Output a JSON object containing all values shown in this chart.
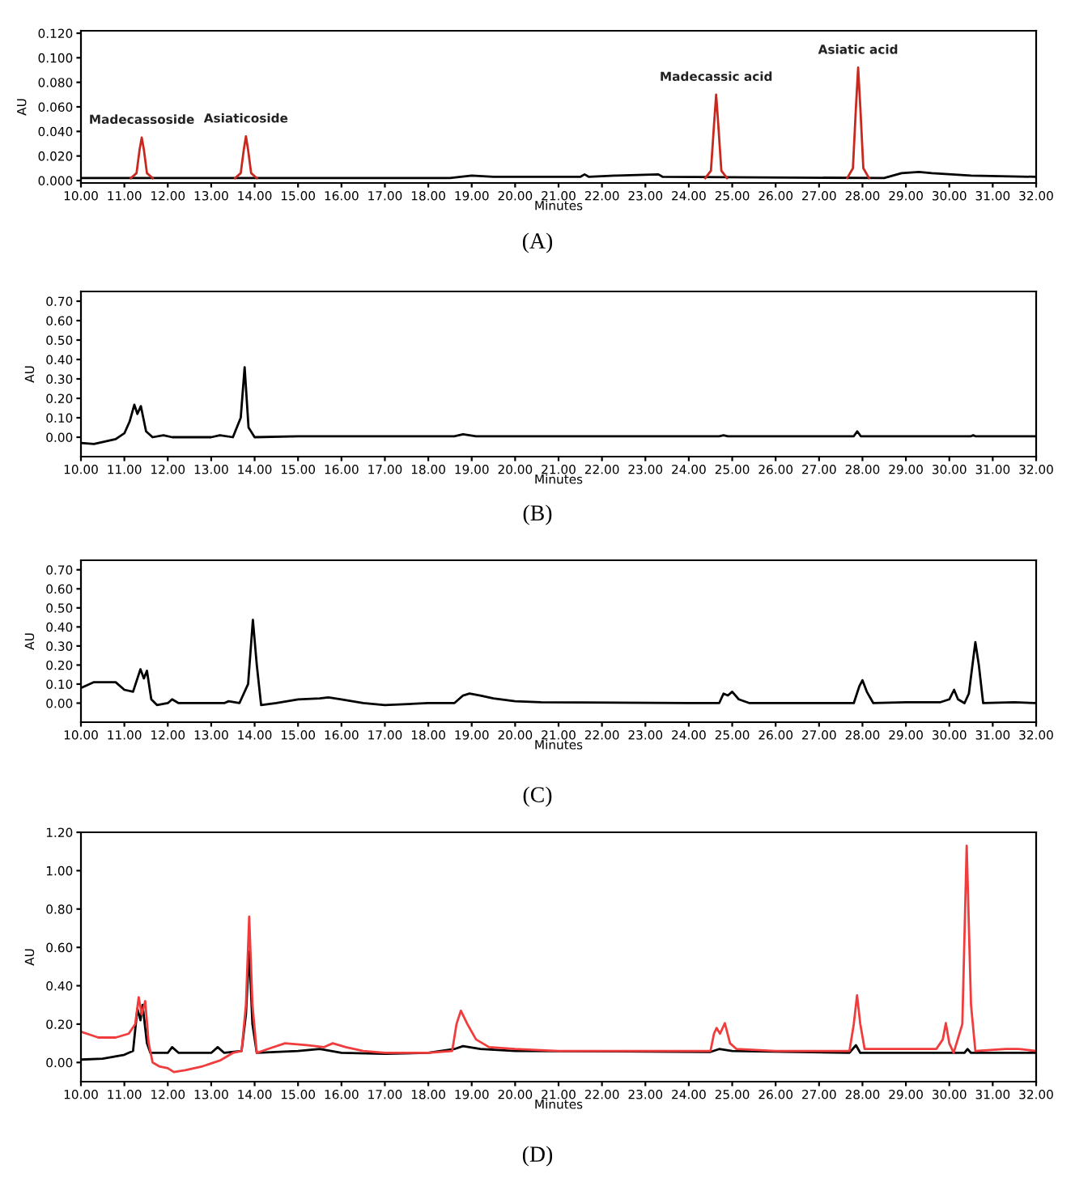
{
  "chart_data": [
    {
      "type": "line",
      "title": "(A)",
      "xlabel": "Minutes",
      "ylabel": "AU",
      "xlim": [
        10,
        32
      ],
      "ylim": [
        -0.002,
        0.122
      ],
      "xticks": [
        {
          "value": 10,
          "label": "10.00"
        },
        {
          "value": 11,
          "label": "11.00"
        },
        {
          "value": 12,
          "label": "12.00"
        },
        {
          "value": 13,
          "label": "13.00"
        },
        {
          "value": 14,
          "label": "14.00"
        },
        {
          "value": 15,
          "label": "15.00"
        },
        {
          "value": 16,
          "label": "16.00"
        },
        {
          "value": 17,
          "label": "17.00"
        },
        {
          "value": 18,
          "label": "18.00"
        },
        {
          "value": 19,
          "label": "19.00"
        },
        {
          "value": 20,
          "label": "20.00"
        },
        {
          "value": 21,
          "label": "21.00"
        },
        {
          "value": 22,
          "label": "22.00"
        },
        {
          "value": 23,
          "label": "23.00"
        },
        {
          "value": 24,
          "label": "24.00"
        },
        {
          "value": 25,
          "label": "25.00"
        },
        {
          "value": 26,
          "label": "26.00"
        },
        {
          "value": 27,
          "label": "27.00"
        },
        {
          "value": 28,
          "label": "28.00"
        },
        {
          "value": 29,
          "label": "29.00"
        },
        {
          "value": 30,
          "label": "30.00"
        },
        {
          "value": 31,
          "label": "31.00"
        },
        {
          "value": 32,
          "label": "32.00"
        }
      ],
      "yticks": [
        {
          "value": 0,
          "label": "0.000"
        },
        {
          "value": 0.02,
          "label": "0.020"
        },
        {
          "value": 0.04,
          "label": "0.040"
        },
        {
          "value": 0.06,
          "label": "0.060"
        },
        {
          "value": 0.08,
          "label": "0.080"
        },
        {
          "value": 0.1,
          "label": "0.100"
        },
        {
          "value": 0.12,
          "label": "0.120"
        }
      ],
      "series": [
        {
          "color": "#000000",
          "x": [
            10.0,
            18.5,
            19.0,
            19.5,
            21.5,
            21.6,
            21.7,
            22.3,
            23.3,
            23.4,
            28.5,
            28.9,
            29.3,
            29.6,
            30.5,
            32.0
          ],
          "values": [
            0.002,
            0.002,
            0.004,
            0.003,
            0.003,
            0.005,
            0.003,
            0.004,
            0.005,
            0.003,
            0.002,
            0.006,
            0.007,
            0.006,
            0.004,
            0.003
          ]
        },
        {
          "color": "#c8281e",
          "x": [
            11.15,
            11.28,
            11.35,
            11.4,
            11.45,
            11.52,
            11.65,
            11.7,
            13.55,
            13.68,
            13.75,
            13.8,
            13.85,
            13.92,
            14.05,
            14.1,
            24.38,
            24.51,
            24.58,
            24.63,
            24.68,
            24.75,
            24.88,
            24.9,
            27.65,
            27.78,
            27.85,
            27.9,
            27.95,
            28.02,
            28.15
          ],
          "values": [
            0.002,
            0.006,
            0.025,
            0.035,
            0.025,
            0.006,
            0.002,
            null,
            0.002,
            0.006,
            0.025,
            0.036,
            0.025,
            0.006,
            0.002,
            null,
            0.002,
            0.008,
            0.045,
            0.07,
            0.045,
            0.008,
            0.002,
            null,
            0.002,
            0.01,
            0.06,
            0.092,
            0.06,
            0.01,
            0.002
          ]
        }
      ],
      "annotations": [
        {
          "text": "Madecassoside",
          "x": 11.4,
          "y": 0.035
        },
        {
          "text": "Asiaticoside",
          "x": 13.8,
          "y": 0.036
        },
        {
          "text": "Madecassic acid",
          "x": 24.63,
          "y": 0.07
        },
        {
          "text": "Asiatic acid",
          "x": 27.9,
          "y": 0.092
        }
      ]
    },
    {
      "type": "line",
      "title": "(B)",
      "xlabel": "Minutes",
      "ylabel": "AU",
      "xlim": [
        10,
        32
      ],
      "ylim": [
        -0.1,
        0.75
      ],
      "xticks": [
        {
          "value": 10,
          "label": "10.00"
        },
        {
          "value": 11,
          "label": "11.00"
        },
        {
          "value": 12,
          "label": "12.00"
        },
        {
          "value": 13,
          "label": "13.00"
        },
        {
          "value": 14,
          "label": "14.00"
        },
        {
          "value": 15,
          "label": "15.00"
        },
        {
          "value": 16,
          "label": "16.00"
        },
        {
          "value": 17,
          "label": "17.00"
        },
        {
          "value": 18,
          "label": "18.00"
        },
        {
          "value": 19,
          "label": "19.00"
        },
        {
          "value": 20,
          "label": "20.00"
        },
        {
          "value": 21,
          "label": "21.00"
        },
        {
          "value": 22,
          "label": "22.00"
        },
        {
          "value": 23,
          "label": "23.00"
        },
        {
          "value": 24,
          "label": "24.00"
        },
        {
          "value": 25,
          "label": "25.00"
        },
        {
          "value": 26,
          "label": "26.00"
        },
        {
          "value": 27,
          "label": "27.00"
        },
        {
          "value": 28,
          "label": "28.00"
        },
        {
          "value": 29,
          "label": "29.00"
        },
        {
          "value": 30,
          "label": "30.00"
        },
        {
          "value": 31,
          "label": "31.00"
        },
        {
          "value": 32,
          "label": "32.00"
        }
      ],
      "yticks": [
        {
          "value": 0,
          "label": "0.00"
        },
        {
          "value": 0.1,
          "label": "0.10"
        },
        {
          "value": 0.2,
          "label": "0.20"
        },
        {
          "value": 0.3,
          "label": "0.30"
        },
        {
          "value": 0.4,
          "label": "0.40"
        },
        {
          "value": 0.5,
          "label": "0.50"
        },
        {
          "value": 0.6,
          "label": "0.60"
        },
        {
          "value": 0.7,
          "label": "0.70"
        }
      ],
      "series": [
        {
          "color": "#000000",
          "x": [
            10.0,
            10.3,
            10.8,
            11.0,
            11.12,
            11.23,
            11.3,
            11.38,
            11.5,
            11.65,
            11.9,
            12.1,
            13.0,
            13.2,
            13.5,
            13.68,
            13.77,
            13.86,
            14.0,
            15.0,
            18.6,
            18.8,
            19.1,
            24.7,
            24.8,
            24.9,
            27.8,
            27.88,
            27.96,
            28.1,
            30.5,
            30.55,
            30.6,
            32.0
          ],
          "values": [
            -0.03,
            -0.035,
            -0.01,
            0.02,
            0.08,
            0.167,
            0.12,
            0.16,
            0.03,
            0.0,
            0.01,
            0.0,
            0.0,
            0.01,
            0.0,
            0.1,
            0.36,
            0.05,
            0.0,
            0.005,
            0.005,
            0.015,
            0.005,
            0.005,
            0.01,
            0.005,
            0.005,
            0.03,
            0.005,
            0.005,
            0.005,
            0.01,
            0.005,
            0.005
          ]
        }
      ]
    },
    {
      "type": "line",
      "title": "(C)",
      "xlabel": "Minutes",
      "ylabel": "AU",
      "xlim": [
        10,
        32
      ],
      "ylim": [
        -0.1,
        0.75
      ],
      "xticks": [
        {
          "value": 10,
          "label": "10.00"
        },
        {
          "value": 11,
          "label": "11.00"
        },
        {
          "value": 12,
          "label": "12.00"
        },
        {
          "value": 13,
          "label": "13.00"
        },
        {
          "value": 14,
          "label": "14.00"
        },
        {
          "value": 15,
          "label": "15.00"
        },
        {
          "value": 16,
          "label": "16.00"
        },
        {
          "value": 17,
          "label": "17.00"
        },
        {
          "value": 18,
          "label": "18.00"
        },
        {
          "value": 19,
          "label": "19.00"
        },
        {
          "value": 20,
          "label": "20.00"
        },
        {
          "value": 21,
          "label": "21.00"
        },
        {
          "value": 22,
          "label": "22.00"
        },
        {
          "value": 23,
          "label": "23.00"
        },
        {
          "value": 24,
          "label": "24.00"
        },
        {
          "value": 25,
          "label": "25.00"
        },
        {
          "value": 26,
          "label": "26.00"
        },
        {
          "value": 27,
          "label": "27.00"
        },
        {
          "value": 28,
          "label": "28.00"
        },
        {
          "value": 29,
          "label": "29.00"
        },
        {
          "value": 30,
          "label": "30.00"
        },
        {
          "value": 31,
          "label": "31.00"
        },
        {
          "value": 32,
          "label": "32.00"
        }
      ],
      "yticks": [
        {
          "value": 0,
          "label": "0.00"
        },
        {
          "value": 0.1,
          "label": "0.10"
        },
        {
          "value": 0.2,
          "label": "0.20"
        },
        {
          "value": 0.3,
          "label": "0.30"
        },
        {
          "value": 0.4,
          "label": "0.40"
        },
        {
          "value": 0.5,
          "label": "0.50"
        },
        {
          "value": 0.6,
          "label": "0.60"
        },
        {
          "value": 0.7,
          "label": "0.70"
        }
      ],
      "series": [
        {
          "color": "#000000",
          "x": [
            10.0,
            10.3,
            10.8,
            11.0,
            11.2,
            11.37,
            11.45,
            11.52,
            11.62,
            11.75,
            12.0,
            12.1,
            12.25,
            13.0,
            13.3,
            13.4,
            13.65,
            13.85,
            13.96,
            14.05,
            14.15,
            14.5,
            15.0,
            15.5,
            15.7,
            16.0,
            16.5,
            17.0,
            18.0,
            18.6,
            18.8,
            18.95,
            19.2,
            19.5,
            20.0,
            20.6,
            24.0,
            24.7,
            24.8,
            24.9,
            25.0,
            25.15,
            25.4,
            26.0,
            27.8,
            27.93,
            28.0,
            28.1,
            28.25,
            29.0,
            29.8,
            30.0,
            30.11,
            30.2,
            30.35,
            30.45,
            30.6,
            30.68,
            30.78,
            31.5,
            32.0
          ],
          "values": [
            0.08,
            0.11,
            0.11,
            0.07,
            0.06,
            0.178,
            0.13,
            0.17,
            0.02,
            -0.01,
            0.0,
            0.02,
            0.0,
            0.0,
            0.0,
            0.01,
            0.0,
            0.1,
            0.437,
            0.2,
            -0.01,
            0.0,
            0.02,
            0.025,
            0.03,
            0.02,
            0.0,
            -0.01,
            0.0,
            0.0,
            0.04,
            0.05,
            0.04,
            0.025,
            0.01,
            0.005,
            0.0,
            0.0,
            0.05,
            0.04,
            0.06,
            0.02,
            0.0,
            0.0,
            0.0,
            0.09,
            0.12,
            0.06,
            0.0,
            0.005,
            0.005,
            0.02,
            0.07,
            0.02,
            0.0,
            0.05,
            0.32,
            0.2,
            0.0,
            0.005,
            0.0
          ]
        }
      ]
    },
    {
      "type": "line",
      "title": "(D)",
      "xlabel": "Minutes",
      "ylabel": "AU",
      "xlim": [
        10,
        32
      ],
      "ylim": [
        -0.1,
        1.2
      ],
      "xticks": [
        {
          "value": 10,
          "label": "10.00"
        },
        {
          "value": 11,
          "label": "11.00"
        },
        {
          "value": 12,
          "label": "12.00"
        },
        {
          "value": 13,
          "label": "13.00"
        },
        {
          "value": 14,
          "label": "14.00"
        },
        {
          "value": 15,
          "label": "15.00"
        },
        {
          "value": 16,
          "label": "16.00"
        },
        {
          "value": 17,
          "label": "17.00"
        },
        {
          "value": 18,
          "label": "18.00"
        },
        {
          "value": 19,
          "label": "19.00"
        },
        {
          "value": 20,
          "label": "20.00"
        },
        {
          "value": 21,
          "label": "21.00"
        },
        {
          "value": 22,
          "label": "22.00"
        },
        {
          "value": 23,
          "label": "23.00"
        },
        {
          "value": 24,
          "label": "24.00"
        },
        {
          "value": 25,
          "label": "25.00"
        },
        {
          "value": 26,
          "label": "26.00"
        },
        {
          "value": 27,
          "label": "27.00"
        },
        {
          "value": 28,
          "label": "28.00"
        },
        {
          "value": 29,
          "label": "29.00"
        },
        {
          "value": 30,
          "label": "30.00"
        },
        {
          "value": 31,
          "label": "31.00"
        },
        {
          "value": 32,
          "label": "32.00"
        }
      ],
      "yticks": [
        {
          "value": 0,
          "label": "0.00"
        },
        {
          "value": 0.2,
          "label": "0.20"
        },
        {
          "value": 0.4,
          "label": "0.40"
        },
        {
          "value": 0.6,
          "label": "0.60"
        },
        {
          "value": 0.8,
          "label": "0.80"
        },
        {
          "value": 1.0,
          "label": "1.00"
        },
        {
          "value": 1.2,
          "label": "1.20"
        }
      ],
      "series": [
        {
          "color": "#000000",
          "x": [
            10.0,
            10.5,
            11.0,
            11.2,
            11.3,
            11.37,
            11.42,
            11.52,
            11.6,
            12.0,
            12.1,
            12.25,
            13.0,
            13.15,
            13.3,
            13.7,
            13.8,
            13.875,
            13.95,
            14.05,
            15.0,
            15.5,
            16.0,
            17.0,
            18.0,
            18.6,
            18.8,
            19.2,
            20.0,
            24.5,
            24.7,
            25.0,
            27.7,
            27.85,
            27.95,
            30.35,
            30.42,
            30.5,
            32.0
          ],
          "values": [
            0.015,
            0.02,
            0.04,
            0.06,
            0.28,
            0.22,
            0.3,
            0.1,
            0.05,
            0.05,
            0.08,
            0.05,
            0.05,
            0.08,
            0.05,
            0.06,
            0.25,
            0.58,
            0.2,
            0.05,
            0.06,
            0.07,
            0.05,
            0.045,
            0.05,
            0.07,
            0.085,
            0.07,
            0.06,
            0.055,
            0.07,
            0.06,
            0.05,
            0.09,
            0.05,
            0.05,
            0.07,
            0.05,
            0.05
          ]
        },
        {
          "color": "#f03c3c",
          "x": [
            10.0,
            10.4,
            10.8,
            11.1,
            11.25,
            11.33,
            11.4,
            11.48,
            11.56,
            11.65,
            11.8,
            12.0,
            12.14,
            12.4,
            12.8,
            13.2,
            13.5,
            13.7,
            13.8,
            13.875,
            13.95,
            14.05,
            14.3,
            14.7,
            15.2,
            15.6,
            15.8,
            16.1,
            16.5,
            17.0,
            18.0,
            18.55,
            18.65,
            18.75,
            18.9,
            19.1,
            19.4,
            20.0,
            21.0,
            24.5,
            24.58,
            24.64,
            24.72,
            24.83,
            24.95,
            25.1,
            26.0,
            27.7,
            27.8,
            27.875,
            27.95,
            28.05,
            28.8,
            29.7,
            29.85,
            29.92,
            30.0,
            30.1,
            30.3,
            30.4,
            30.5,
            30.6,
            31.3,
            31.6,
            32.0
          ],
          "values": [
            0.16,
            0.13,
            0.13,
            0.15,
            0.2,
            0.34,
            0.25,
            0.32,
            0.1,
            0.0,
            -0.02,
            -0.03,
            -0.05,
            -0.04,
            -0.02,
            0.01,
            0.05,
            0.06,
            0.3,
            0.76,
            0.3,
            0.05,
            0.07,
            0.1,
            0.09,
            0.08,
            0.1,
            0.08,
            0.06,
            0.05,
            0.05,
            0.06,
            0.2,
            0.27,
            0.2,
            0.12,
            0.08,
            0.07,
            0.06,
            0.06,
            0.15,
            0.18,
            0.15,
            0.205,
            0.1,
            0.07,
            0.06,
            0.06,
            0.2,
            0.35,
            0.2,
            0.07,
            0.07,
            0.07,
            0.12,
            0.205,
            0.1,
            0.05,
            0.2,
            1.13,
            0.3,
            0.06,
            0.07,
            0.07,
            0.06
          ]
        }
      ]
    }
  ]
}
